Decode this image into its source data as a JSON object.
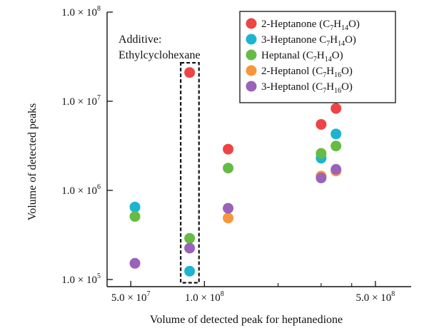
{
  "chart_data": {
    "type": "scatter",
    "xlabel": "Volume of detected peak for heptanedione",
    "ylabel": "Volume of detected peaks",
    "x_scale": "log",
    "y_scale": "log",
    "xlim": [
      40000000,
      700000000
    ],
    "ylim": [
      100000,
      100000000
    ],
    "x_ticks": [
      {
        "value": 50000000,
        "label": "5.0 × 10",
        "exp": "7"
      },
      {
        "value": 100000000,
        "label": "1.0 × 10",
        "exp": "8"
      },
      {
        "value": 500000000,
        "label": "5.0 × 10",
        "exp": "8"
      }
    ],
    "x_minor_ticks": [
      200000000,
      300000000,
      400000000
    ],
    "y_ticks": [
      {
        "value": 100000,
        "label": "1.0 × 10",
        "exp": "5"
      },
      {
        "value": 1000000,
        "label": "1.0 × 10",
        "exp": "6"
      },
      {
        "value": 10000000,
        "label": "1.0 × 10",
        "exp": "7"
      },
      {
        "value": 100000000,
        "label": "1.0 × 10",
        "exp": "8"
      }
    ],
    "series": [
      {
        "name": "2-Heptanone (C7H14O)",
        "color": "#ee4444",
        "points": [
          [
            87000000,
            21000000
          ],
          [
            125000000,
            2900000
          ],
          [
            300000000,
            5500000
          ],
          [
            345000000,
            8300000
          ]
        ]
      },
      {
        "name": "3-Heptanone C7H14O)",
        "color": "#1bb5cf",
        "points": [
          [
            52000000,
            650000
          ],
          [
            87000000,
            124000
          ],
          [
            300000000,
            2300000
          ],
          [
            345000000,
            4300000
          ]
        ]
      },
      {
        "name": "Heptanal (C7H14O)",
        "color": "#66bb44",
        "points": [
          [
            52000000,
            510000
          ],
          [
            87000000,
            290000
          ],
          [
            125000000,
            1780000
          ],
          [
            300000000,
            2600000
          ],
          [
            345000000,
            3150000
          ]
        ]
      },
      {
        "name": "2-Heptanol (C7H16O)",
        "color": "#f8973a",
        "points": [
          [
            125000000,
            490000
          ],
          [
            300000000,
            1450000
          ],
          [
            345000000,
            1650000
          ]
        ]
      },
      {
        "name": "3-Heptanol (C7H16O)",
        "color": "#9a62b8",
        "points": [
          [
            52000000,
            152000
          ],
          [
            87000000,
            225000
          ],
          [
            125000000,
            630000
          ],
          [
            300000000,
            1380000
          ],
          [
            345000000,
            1720000
          ]
        ]
      }
    ],
    "legend": {
      "placement": "top-right",
      "entries": [
        {
          "prefix": "2-Heptanone (C",
          "h": "14",
          "o": "O)",
          "c": "7",
          "mid": "H"
        },
        {
          "prefix": "3-Heptanone C",
          "h": "14",
          "o": "O)",
          "c": "7",
          "mid": "H"
        },
        {
          "prefix": "Heptanal (C",
          "h": "14",
          "o": "O)",
          "c": "7",
          "mid": "H"
        },
        {
          "prefix": "2-Heptanol (C",
          "h": "16",
          "o": "O)",
          "c": "7",
          "mid": "H"
        },
        {
          "prefix": "3-Heptanol (C",
          "h": "16",
          "o": "O)",
          "c": "7",
          "mid": "H"
        }
      ]
    },
    "annotation": {
      "line1": "Additive:",
      "line2": "Ethylcyclohexane",
      "x_range": [
        80000000,
        95000000
      ],
      "y_range": [
        92000,
        27000000
      ]
    }
  }
}
